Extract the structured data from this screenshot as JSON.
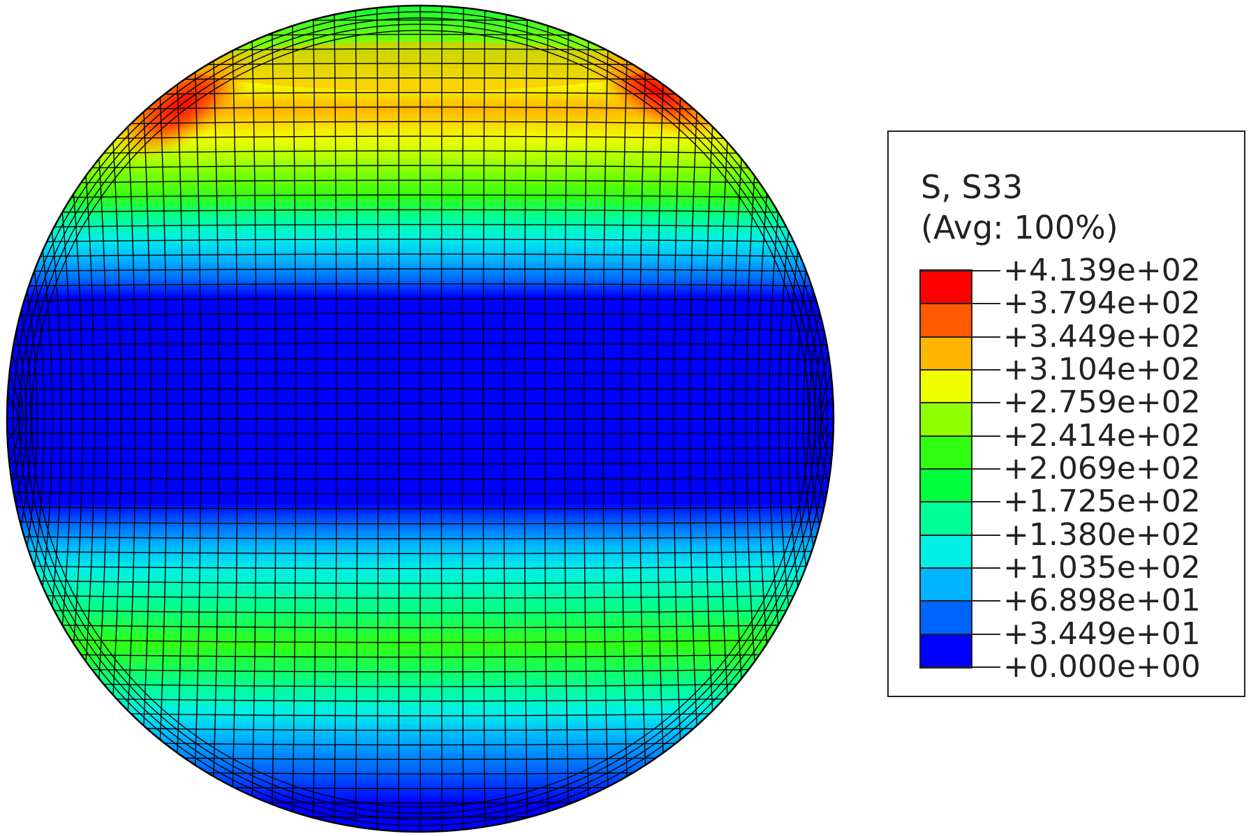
{
  "legend": {
    "variable": "S, S33",
    "averaging": "(Avg: 100%)",
    "levels": [
      "+4.139e+02",
      "+3.794e+02",
      "+3.449e+02",
      "+3.104e+02",
      "+2.759e+02",
      "+2.414e+02",
      "+2.069e+02",
      "+1.725e+02",
      "+1.380e+02",
      "+1.035e+02",
      "+6.898e+01",
      "+3.449e+01",
      "+0.000e+00"
    ],
    "colors": [
      "#ff0000",
      "#ff5a00",
      "#ffb400",
      "#f0ff00",
      "#90ff00",
      "#30ff10",
      "#00ff3c",
      "#00ff96",
      "#00f0e6",
      "#00b4ff",
      "#0064ff",
      "#0000ff"
    ]
  },
  "model": {
    "shape": "sphere",
    "mesh": "hexahedral elements, black edges",
    "background_band_color": "#0000ff"
  }
}
